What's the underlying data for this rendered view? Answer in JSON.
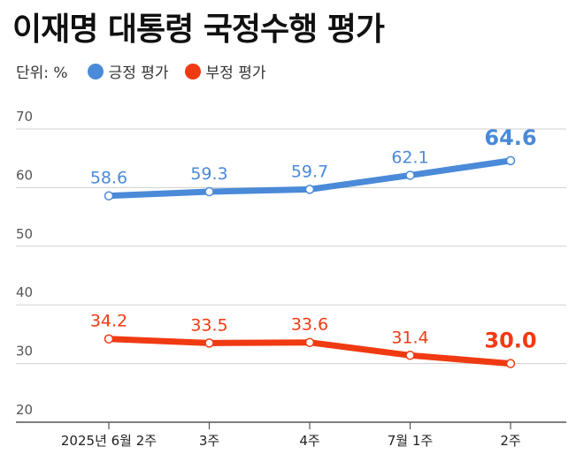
{
  "title": "이재명 대통령 국정수행 평가",
  "unit_label": "단위: %",
  "colors": {
    "positive": "#4a8ad8",
    "negative": "#f03a12",
    "grid": "#cfcfcf",
    "axis": "#555555"
  },
  "chart_data": {
    "type": "line",
    "title": "이재명 대통령 국정수행 평가",
    "categories": [
      "2025년 6월 2주",
      "3주",
      "4주",
      "7월 1주",
      "2주"
    ],
    "series": [
      {
        "name": "긍정 평가",
        "values": [
          58.6,
          59.3,
          59.7,
          62.1,
          64.6
        ],
        "labels": [
          "58.6",
          "59.3",
          "59.7",
          "62.1",
          "64.6"
        ]
      },
      {
        "name": "부정 평가",
        "values": [
          34.2,
          33.5,
          33.6,
          31.4,
          30.0
        ],
        "labels": [
          "34.2",
          "33.5",
          "33.6",
          "31.4",
          "30.0"
        ]
      }
    ],
    "yticks": [
      "20",
      "30",
      "40",
      "50",
      "60",
      "70"
    ],
    "ylim": [
      20,
      70
    ],
    "xlabel": "",
    "ylabel": "%",
    "legend_position": "top-left"
  }
}
